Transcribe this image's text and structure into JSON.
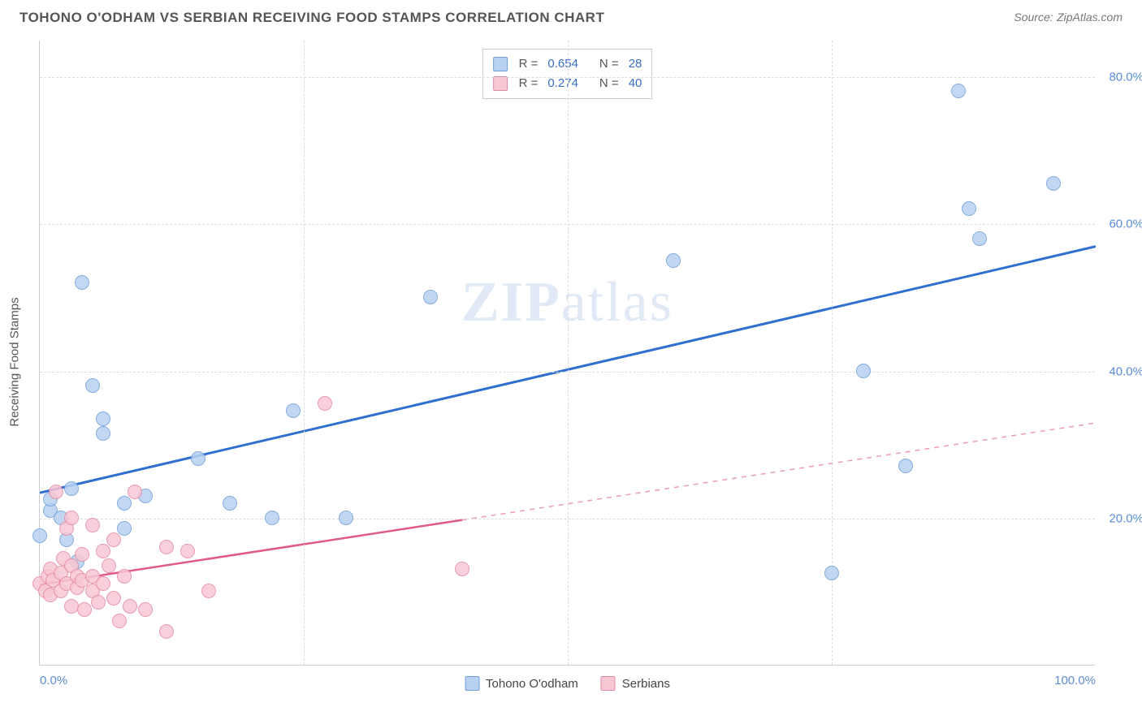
{
  "title": "TOHONO O'ODHAM VS SERBIAN RECEIVING FOOD STAMPS CORRELATION CHART",
  "source_label": "Source:",
  "source_name": "ZipAtlas.com",
  "watermark": {
    "bold": "ZIP",
    "rest": "atlas"
  },
  "ylabel": "Receiving Food Stamps",
  "chart": {
    "type": "scatter",
    "xlim": [
      0,
      100
    ],
    "ylim": [
      0,
      85
    ],
    "xticks": [
      {
        "val": 0,
        "label": "0.0%",
        "align": "left"
      },
      {
        "val": 100,
        "label": "100.0%",
        "align": "right"
      }
    ],
    "yticks": [
      {
        "val": 20,
        "label": "20.0%"
      },
      {
        "val": 40,
        "label": "40.0%"
      },
      {
        "val": 60,
        "label": "60.0%"
      },
      {
        "val": 80,
        "label": "80.0%"
      }
    ],
    "vgrid_at": [
      25,
      50,
      75
    ],
    "marker_radius": 9,
    "series": [
      {
        "key": "tohono",
        "label": "Tohono O'odham",
        "fill": "#b8d1f0",
        "stroke": "#6f9fd8",
        "line_color": "#2f6fd0",
        "r_value": "0.654",
        "n_value": "28",
        "trend": {
          "x1": 0,
          "y1": 23.5,
          "x2": 100,
          "y2": 57,
          "dash_after_x": null
        },
        "points": [
          [
            0,
            17.5
          ],
          [
            1,
            21
          ],
          [
            1,
            22.5
          ],
          [
            2,
            20
          ],
          [
            2.5,
            17
          ],
          [
            3,
            24
          ],
          [
            3.5,
            14
          ],
          [
            4,
            52
          ],
          [
            5,
            38
          ],
          [
            6,
            31.5
          ],
          [
            6,
            33.5
          ],
          [
            8,
            22
          ],
          [
            8,
            18.5
          ],
          [
            10,
            23
          ],
          [
            15,
            28
          ],
          [
            18,
            22
          ],
          [
            22,
            20
          ],
          [
            24,
            34.5
          ],
          [
            29,
            20
          ],
          [
            37,
            50
          ],
          [
            60,
            55
          ],
          [
            75,
            12.5
          ],
          [
            78,
            40
          ],
          [
            82,
            27
          ],
          [
            87,
            78
          ],
          [
            88,
            62
          ],
          [
            89,
            58
          ],
          [
            96,
            65.5
          ]
        ]
      },
      {
        "key": "serbians",
        "label": "Serbians",
        "fill": "#f7c7d4",
        "stroke": "#e48aa4",
        "line_color": "#e05a88",
        "r_value": "0.274",
        "n_value": "40",
        "trend": {
          "x1": 0,
          "y1": 11,
          "x2": 100,
          "y2": 33,
          "dash_after_x": 40
        },
        "points": [
          [
            0,
            11
          ],
          [
            0.5,
            10
          ],
          [
            0.8,
            12
          ],
          [
            1,
            9.5
          ],
          [
            1,
            13
          ],
          [
            1.2,
            11.5
          ],
          [
            1.5,
            23.5
          ],
          [
            2,
            10
          ],
          [
            2,
            12.5
          ],
          [
            2.2,
            14.5
          ],
          [
            2.5,
            18.5
          ],
          [
            2.5,
            11
          ],
          [
            3,
            8
          ],
          [
            3,
            13.5
          ],
          [
            3,
            20
          ],
          [
            3.5,
            10.5
          ],
          [
            3.5,
            12
          ],
          [
            4,
            11.5
          ],
          [
            4,
            15
          ],
          [
            4.2,
            7.5
          ],
          [
            5,
            12
          ],
          [
            5,
            19
          ],
          [
            5,
            10
          ],
          [
            5.5,
            8.5
          ],
          [
            6,
            11
          ],
          [
            6,
            15.5
          ],
          [
            6.5,
            13.5
          ],
          [
            7,
            9
          ],
          [
            7,
            17
          ],
          [
            7.5,
            6
          ],
          [
            8,
            12
          ],
          [
            8.5,
            8
          ],
          [
            9,
            23.5
          ],
          [
            10,
            7.5
          ],
          [
            12,
            16
          ],
          [
            12,
            4.5
          ],
          [
            14,
            15.5
          ],
          [
            16,
            10
          ],
          [
            27,
            35.5
          ],
          [
            40,
            13
          ]
        ]
      }
    ]
  }
}
